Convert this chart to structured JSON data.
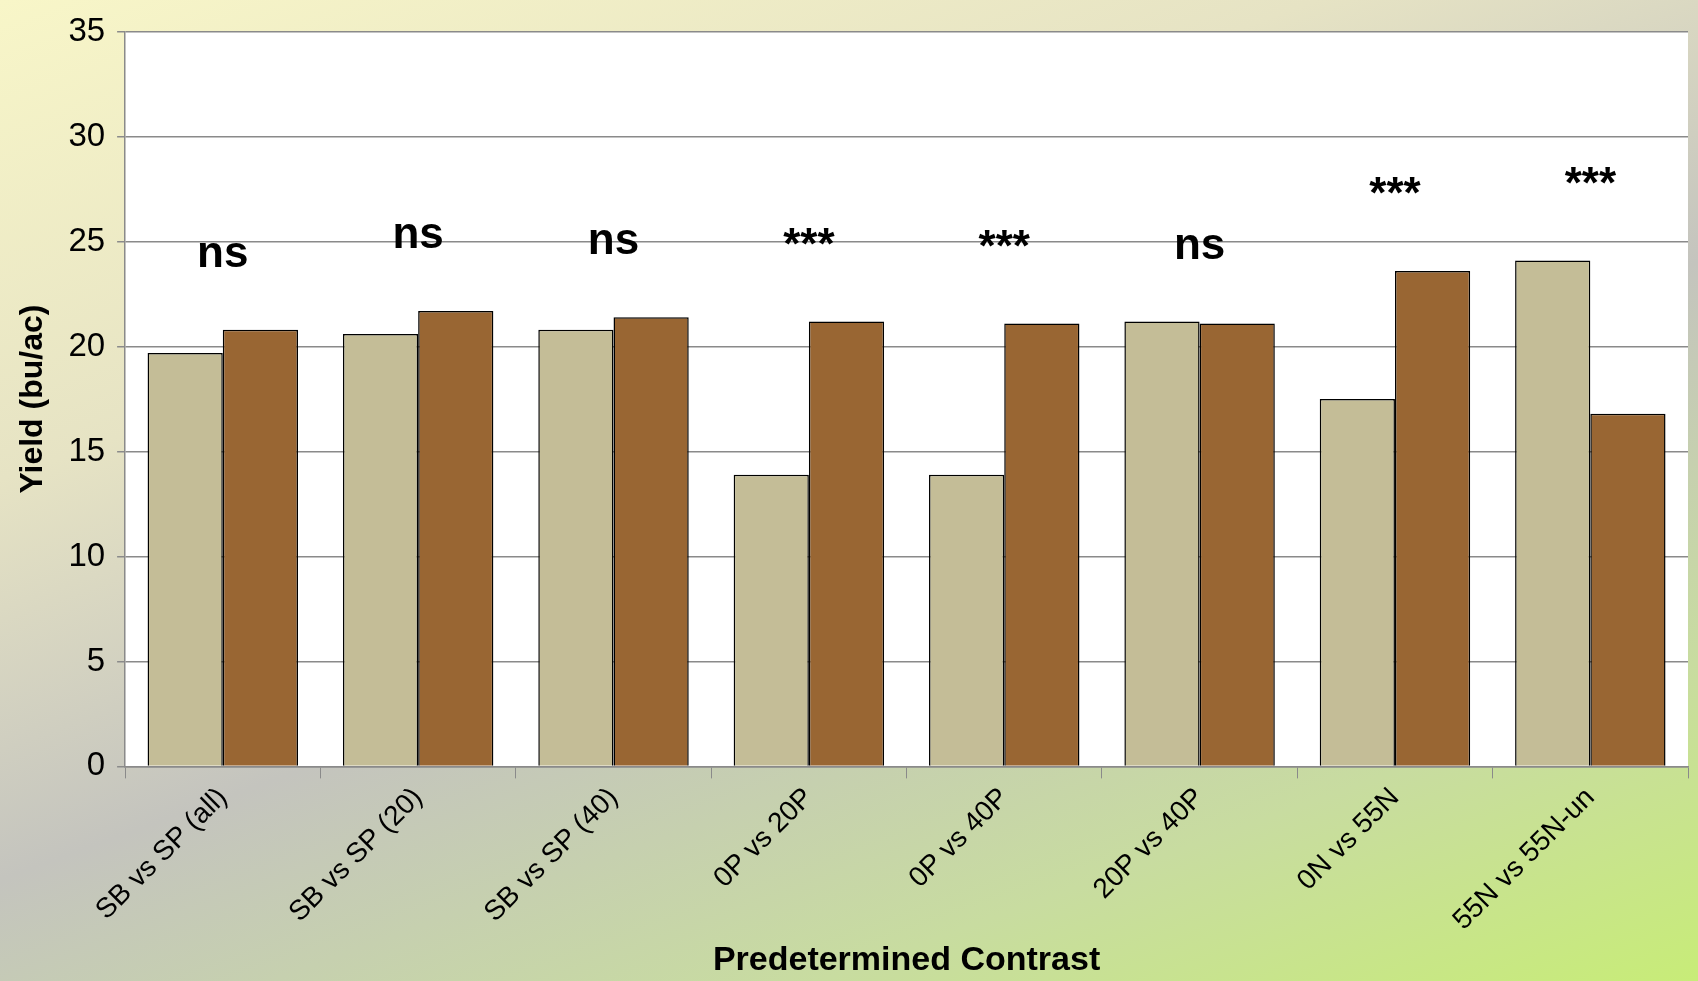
{
  "chart_data": {
    "type": "bar",
    "xlabel": "Predetermined Contrast",
    "ylabel": "Yield (bu/ac)",
    "categories": [
      "SB vs SP (all)",
      "SB vs SP (20)",
      "SB vs SP (40)",
      "0P vs 20P",
      "0P vs 40P",
      "20P vs 40P",
      "0N vs 55N",
      "55N vs 55N-un"
    ],
    "series": [
      {
        "color": "#c4bd97",
        "values": [
          19.7,
          20.6,
          20.8,
          13.9,
          13.9,
          21.2,
          17.5,
          24.1
        ]
      },
      {
        "color": "#996633",
        "values": [
          20.8,
          21.7,
          21.4,
          21.2,
          21.1,
          21.1,
          23.6,
          16.8
        ]
      }
    ],
    "ylim": [
      0,
      35
    ],
    "yticks": [
      0,
      5,
      10,
      15,
      20,
      25,
      30,
      35
    ],
    "grid": "y",
    "legend": false,
    "annotations": [
      "ns",
      "ns",
      "ns",
      "***",
      "***",
      "ns",
      "***",
      "***"
    ]
  }
}
